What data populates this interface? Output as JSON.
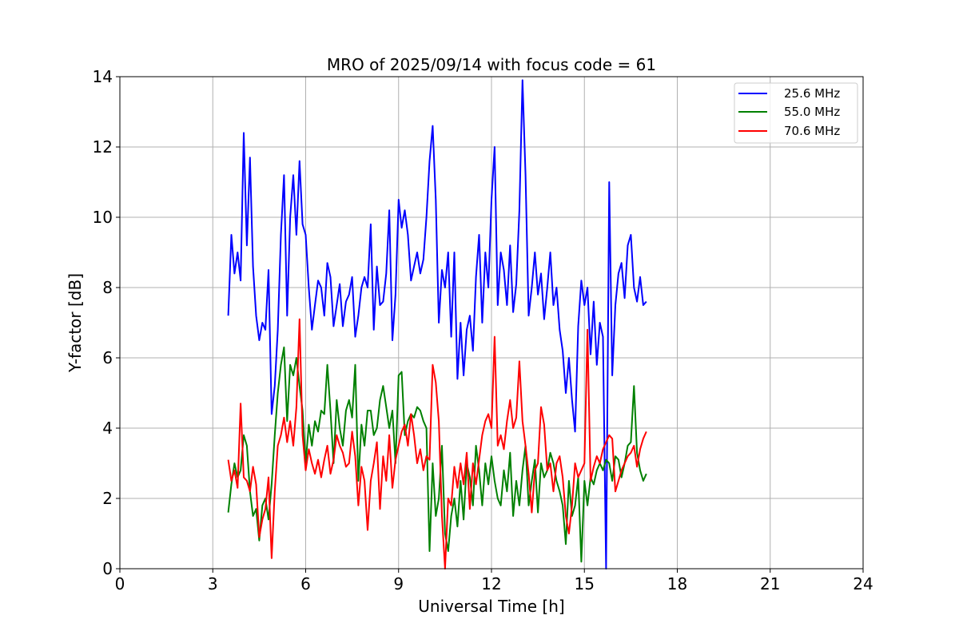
{
  "chart_data": {
    "type": "line",
    "title": "MRO of 2025/09/14 with focus code = 61",
    "xlabel": "Universal Time [h]",
    "ylabel": "Y-factor [dB]",
    "xlim": [
      0,
      24
    ],
    "ylim": [
      0,
      14
    ],
    "xticks": [
      0,
      3,
      6,
      9,
      12,
      15,
      18,
      21,
      24
    ],
    "yticks": [
      0,
      2,
      4,
      6,
      8,
      10,
      12,
      14
    ],
    "xtick_labels": [
      "0",
      "3",
      "6",
      "9",
      "12",
      "15",
      "18",
      "21",
      "24"
    ],
    "ytick_labels": [
      "0",
      "2",
      "4",
      "6",
      "8",
      "10",
      "12",
      "14"
    ],
    "grid": true,
    "legend_position": "top-right",
    "series": [
      {
        "name": "25.6 MHz",
        "color": "#0000ff",
        "x": [
          3.5,
          3.6,
          3.7,
          3.8,
          3.9,
          4.0,
          4.1,
          4.2,
          4.3,
          4.4,
          4.5,
          4.6,
          4.7,
          4.8,
          4.9,
          5.0,
          5.1,
          5.2,
          5.3,
          5.4,
          5.5,
          5.6,
          5.7,
          5.8,
          5.9,
          6.0,
          6.1,
          6.2,
          6.3,
          6.4,
          6.5,
          6.6,
          6.7,
          6.8,
          6.9,
          7.0,
          7.1,
          7.2,
          7.3,
          7.4,
          7.5,
          7.6,
          7.7,
          7.8,
          7.9,
          8.0,
          8.1,
          8.2,
          8.3,
          8.4,
          8.5,
          8.6,
          8.7,
          8.8,
          8.9,
          9.0,
          9.1,
          9.2,
          9.3,
          9.4,
          9.5,
          9.6,
          9.7,
          9.8,
          9.9,
          10.0,
          10.1,
          10.2,
          10.3,
          10.4,
          10.5,
          10.6,
          10.7,
          10.8,
          10.9,
          11.0,
          11.1,
          11.2,
          11.3,
          11.4,
          11.5,
          11.6,
          11.7,
          11.8,
          11.9,
          12.0,
          12.1,
          12.2,
          12.3,
          12.4,
          12.5,
          12.6,
          12.7,
          12.8,
          12.9,
          13.0,
          13.1,
          13.2,
          13.3,
          13.4,
          13.5,
          13.6,
          13.7,
          13.8,
          13.9,
          14.0,
          14.1,
          14.2,
          14.3,
          14.4,
          14.5,
          14.6,
          14.7,
          14.8,
          14.9,
          15.0,
          15.1,
          15.2,
          15.3,
          15.4,
          15.5,
          15.6,
          15.7,
          15.8,
          15.9,
          16.0,
          16.1,
          16.2,
          16.3,
          16.4,
          16.5,
          16.6,
          16.7,
          16.8,
          16.9,
          17.0
        ],
        "y": [
          7.2,
          9.5,
          8.4,
          9.0,
          8.2,
          12.4,
          9.2,
          11.7,
          8.6,
          7.2,
          6.5,
          7.0,
          6.8,
          8.5,
          4.4,
          5.2,
          6.8,
          9.5,
          11.2,
          7.2,
          10.0,
          11.2,
          9.5,
          11.6,
          9.8,
          9.5,
          8.0,
          6.8,
          7.5,
          8.2,
          8.0,
          7.2,
          8.7,
          8.3,
          6.9,
          7.5,
          8.1,
          6.9,
          7.6,
          7.8,
          8.3,
          6.6,
          7.2,
          8.0,
          8.3,
          8.0,
          9.8,
          6.8,
          8.6,
          7.5,
          7.6,
          8.4,
          10.2,
          6.5,
          7.8,
          10.5,
          9.7,
          10.2,
          9.5,
          8.2,
          8.6,
          9.0,
          8.4,
          8.8,
          10.0,
          11.6,
          12.6,
          10.5,
          7.0,
          8.5,
          8.0,
          9.0,
          6.6,
          9.0,
          5.4,
          7.0,
          5.5,
          6.8,
          7.2,
          6.2,
          8.3,
          9.5,
          7.0,
          9.0,
          8.0,
          10.5,
          12.0,
          7.5,
          9.0,
          8.5,
          7.5,
          9.2,
          7.3,
          8.1,
          10.2,
          13.9,
          11.2,
          7.2,
          8.0,
          9.0,
          7.8,
          8.4,
          7.1,
          8.0,
          9.0,
          7.5,
          8.0,
          6.8,
          6.2,
          5.0,
          6.0,
          4.8,
          3.9,
          6.9,
          8.2,
          7.5,
          8.0,
          6.1,
          7.6,
          5.8,
          7.0,
          6.6,
          0.0,
          11.0,
          5.5,
          7.5,
          8.4,
          8.7,
          7.7,
          9.2,
          9.5,
          8.0,
          7.6,
          8.3,
          7.5,
          7.6
        ]
      },
      {
        "name": "55.0 MHz",
        "color": "#008000",
        "x": [
          3.5,
          3.6,
          3.7,
          3.8,
          3.9,
          4.0,
          4.1,
          4.2,
          4.3,
          4.4,
          4.5,
          4.6,
          4.7,
          4.8,
          4.9,
          5.0,
          5.1,
          5.2,
          5.3,
          5.4,
          5.5,
          5.6,
          5.7,
          5.8,
          5.9,
          6.0,
          6.1,
          6.2,
          6.3,
          6.4,
          6.5,
          6.6,
          6.7,
          6.8,
          6.9,
          7.0,
          7.1,
          7.2,
          7.3,
          7.4,
          7.5,
          7.6,
          7.7,
          7.8,
          7.9,
          8.0,
          8.1,
          8.2,
          8.3,
          8.4,
          8.5,
          8.6,
          8.7,
          8.8,
          8.9,
          9.0,
          9.1,
          9.2,
          9.3,
          9.4,
          9.5,
          9.6,
          9.7,
          9.8,
          9.9,
          10.0,
          10.1,
          10.2,
          10.3,
          10.4,
          10.5,
          10.6,
          10.7,
          10.8,
          10.9,
          11.0,
          11.1,
          11.2,
          11.3,
          11.4,
          11.5,
          11.6,
          11.7,
          11.8,
          11.9,
          12.0,
          12.1,
          12.2,
          12.3,
          12.4,
          12.5,
          12.6,
          12.7,
          12.8,
          12.9,
          13.0,
          13.1,
          13.2,
          13.3,
          13.4,
          13.5,
          13.6,
          13.7,
          13.8,
          13.9,
          14.0,
          14.1,
          14.2,
          14.3,
          14.4,
          14.5,
          14.6,
          14.7,
          14.8,
          14.9,
          15.0,
          15.1,
          15.2,
          15.3,
          15.4,
          15.5,
          15.6,
          15.7,
          15.8,
          15.9,
          16.0,
          16.1,
          16.2,
          16.3,
          16.4,
          16.5,
          16.6,
          16.7,
          16.8,
          16.9,
          17.0
        ],
        "y": [
          1.6,
          2.4,
          3.0,
          2.6,
          2.8,
          3.8,
          3.5,
          2.2,
          1.5,
          1.7,
          0.8,
          1.8,
          2.0,
          1.4,
          2.4,
          3.8,
          5.0,
          5.8,
          6.3,
          4.2,
          5.8,
          5.5,
          6.0,
          5.2,
          4.5,
          3.0,
          4.1,
          3.5,
          4.2,
          3.9,
          4.5,
          4.4,
          5.8,
          4.5,
          3.0,
          4.8,
          4.0,
          3.5,
          4.5,
          4.8,
          4.3,
          5.8,
          2.5,
          4.1,
          3.5,
          4.5,
          4.5,
          3.8,
          4.0,
          4.8,
          5.2,
          4.6,
          4.0,
          4.5,
          3.0,
          5.5,
          5.6,
          3.8,
          4.2,
          4.4,
          4.3,
          4.6,
          4.5,
          4.2,
          4.0,
          0.5,
          3.0,
          1.5,
          2.0,
          3.5,
          1.0,
          0.5,
          1.5,
          2.0,
          1.2,
          2.5,
          1.4,
          3.0,
          2.6,
          1.8,
          3.5,
          2.8,
          1.8,
          3.0,
          2.4,
          3.2,
          2.5,
          2.0,
          1.8,
          2.8,
          2.2,
          3.3,
          1.5,
          2.5,
          1.8,
          2.8,
          3.5,
          1.8,
          2.5,
          3.1,
          1.6,
          3.0,
          2.6,
          2.8,
          3.3,
          3.0,
          2.5,
          2.2,
          1.8,
          0.7,
          2.5,
          1.5,
          1.8,
          2.6,
          0.2,
          2.5,
          1.8,
          2.6,
          2.4,
          2.8,
          3.0,
          2.8,
          3.1,
          3.0,
          2.5,
          3.2,
          3.1,
          2.6,
          3.0,
          3.5,
          3.6,
          5.2,
          3.3,
          2.8,
          2.5,
          2.7
        ]
      },
      {
        "name": "70.6 MHz",
        "color": "#ff0000",
        "x": [
          3.5,
          3.6,
          3.7,
          3.8,
          3.9,
          4.0,
          4.1,
          4.2,
          4.3,
          4.4,
          4.5,
          4.6,
          4.7,
          4.8,
          4.9,
          5.0,
          5.1,
          5.2,
          5.3,
          5.4,
          5.5,
          5.6,
          5.7,
          5.8,
          5.9,
          6.0,
          6.1,
          6.2,
          6.3,
          6.4,
          6.5,
          6.6,
          6.7,
          6.8,
          6.9,
          7.0,
          7.1,
          7.2,
          7.3,
          7.4,
          7.5,
          7.6,
          7.7,
          7.8,
          7.9,
          8.0,
          8.1,
          8.2,
          8.3,
          8.4,
          8.5,
          8.6,
          8.7,
          8.8,
          8.9,
          9.0,
          9.1,
          9.2,
          9.3,
          9.4,
          9.5,
          9.6,
          9.7,
          9.8,
          9.9,
          10.0,
          10.1,
          10.2,
          10.3,
          10.4,
          10.5,
          10.6,
          10.7,
          10.8,
          10.9,
          11.0,
          11.1,
          11.2,
          11.3,
          11.4,
          11.5,
          11.6,
          11.7,
          11.8,
          11.9,
          12.0,
          12.1,
          12.2,
          12.3,
          12.4,
          12.5,
          12.6,
          12.7,
          12.8,
          12.9,
          13.0,
          13.1,
          13.2,
          13.3,
          13.4,
          13.5,
          13.6,
          13.7,
          13.8,
          13.9,
          14.0,
          14.1,
          14.2,
          14.3,
          14.4,
          14.5,
          14.6,
          14.7,
          14.8,
          14.9,
          15.0,
          15.1,
          15.2,
          15.3,
          15.4,
          15.5,
          15.6,
          15.7,
          15.8,
          15.9,
          16.0,
          16.1,
          16.2,
          16.3,
          16.4,
          16.5,
          16.6,
          16.7,
          16.8,
          16.9,
          17.0
        ],
        "y": [
          3.1,
          2.5,
          2.8,
          2.3,
          4.7,
          2.6,
          2.5,
          2.2,
          2.9,
          2.4,
          0.9,
          1.4,
          1.7,
          2.6,
          0.3,
          2.2,
          3.5,
          3.8,
          4.3,
          3.6,
          4.2,
          3.5,
          4.6,
          7.1,
          3.8,
          2.8,
          3.4,
          3.0,
          2.7,
          3.1,
          2.6,
          3.1,
          3.5,
          2.7,
          3.1,
          3.8,
          3.5,
          3.3,
          2.9,
          3.0,
          3.9,
          3.2,
          1.8,
          2.9,
          2.5,
          1.1,
          2.5,
          3.0,
          3.6,
          1.7,
          3.2,
          2.5,
          3.8,
          2.3,
          3.1,
          3.5,
          3.9,
          4.1,
          3.5,
          4.4,
          3.8,
          3.0,
          3.4,
          2.8,
          3.2,
          3.1,
          5.8,
          5.3,
          4.2,
          1.5,
          0.0,
          2.0,
          1.8,
          2.9,
          2.3,
          3.0,
          2.4,
          3.3,
          1.7,
          3.0,
          2.4,
          3.1,
          3.8,
          4.2,
          4.4,
          4.0,
          6.6,
          3.5,
          3.8,
          3.4,
          4.2,
          4.8,
          4.0,
          4.3,
          5.9,
          4.2,
          3.5,
          2.7,
          1.6,
          2.8,
          3.0,
          4.6,
          4.1,
          2.8,
          3.0,
          2.2,
          3.0,
          3.2,
          2.6,
          1.5,
          1.0,
          1.8,
          3.0,
          2.6,
          2.8,
          3.0,
          6.8,
          2.5,
          2.9,
          3.2,
          3.0,
          3.4,
          3.6,
          3.8,
          3.7,
          2.2,
          2.5,
          2.8,
          3.0,
          3.2,
          3.3,
          3.5,
          2.9,
          3.4,
          3.7,
          3.9
        ]
      }
    ]
  }
}
